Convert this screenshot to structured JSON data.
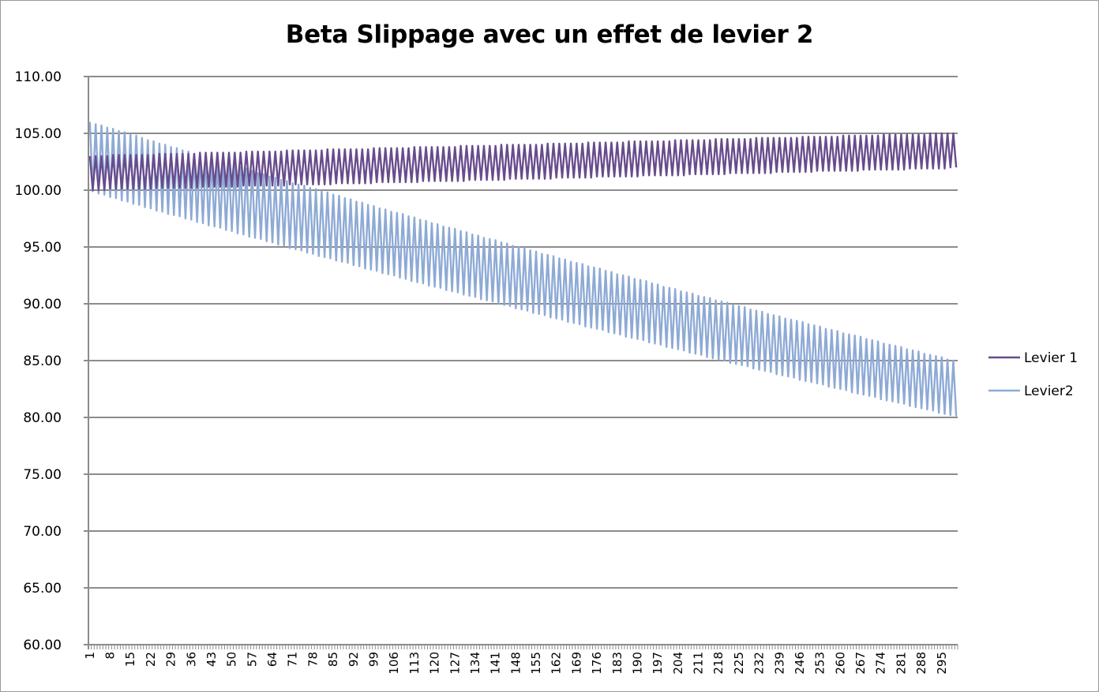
{
  "chart_data": {
    "type": "line",
    "title": "Beta Slippage avec un effet de levier 2",
    "xlabel": "",
    "ylabel": "",
    "ylim": [
      60,
      110
    ],
    "y_ticks": [
      "60.00",
      "65.00",
      "70.00",
      "75.00",
      "80.00",
      "85.00",
      "90.00",
      "95.00",
      "100.00",
      "105.00",
      "110.00"
    ],
    "x_tick_labels": [
      "1",
      "8",
      "15",
      "22",
      "29",
      "36",
      "43",
      "50",
      "57",
      "64",
      "71",
      "78",
      "85",
      "92",
      "99",
      "106",
      "113",
      "120",
      "127",
      "134",
      "141",
      "148",
      "155",
      "162",
      "169",
      "176",
      "183",
      "190",
      "197",
      "204",
      "211",
      "218",
      "225",
      "232",
      "239",
      "246",
      "253",
      "260",
      "267",
      "274",
      "281",
      "288",
      "295"
    ],
    "grid": true,
    "legend_position": "right",
    "series": [
      {
        "name": "Levier 1",
        "color": "#684c8c",
        "values": [
          103,
          100,
          103,
          100,
          103,
          100,
          103,
          100.1,
          103.1,
          100.1,
          103.1,
          100.1,
          103.1,
          100.1,
          103.1,
          100.1,
          103.1,
          100.1,
          103.1,
          100.1,
          103.1,
          100.1,
          103.1,
          100.2,
          103.2,
          100.2,
          103.2,
          100.2,
          103.2,
          100.2,
          103.2,
          100.2,
          103.2,
          100.2,
          103.2,
          100.2,
          103.2,
          100.2,
          103.3,
          100.3,
          103.3,
          100.3,
          103.3,
          100.3,
          103.3,
          100.3,
          103.3,
          100.3,
          103.3,
          100.3,
          103.3,
          100.3,
          103.3,
          100.4,
          103.4,
          100.4,
          103.4,
          100.4,
          103.4,
          100.4,
          103.4,
          100.4,
          103.4,
          100.4,
          103.4,
          100.4,
          103.4,
          100.4,
          103.5,
          100.5,
          103.5,
          100.5,
          103.5,
          100.5,
          103.5,
          100.5,
          103.5,
          100.5,
          103.5,
          100.5,
          103.5,
          100.5,
          103.6,
          100.5,
          103.6,
          100.6,
          103.6,
          100.6,
          103.6,
          100.6,
          103.6,
          100.6,
          103.6,
          100.6,
          103.6,
          100.6,
          103.6,
          100.6,
          103.7,
          100.7,
          103.7,
          100.7,
          103.7,
          100.7,
          103.7,
          100.7,
          103.7,
          100.7,
          103.7,
          100.7,
          103.7,
          100.7,
          103.8,
          100.7,
          103.8,
          100.8,
          103.8,
          100.8,
          103.8,
          100.8,
          103.8,
          100.8,
          103.8,
          100.8,
          103.8,
          100.8,
          103.8,
          100.8,
          103.9,
          100.8,
          103.9,
          100.9,
          103.9,
          100.9,
          103.9,
          100.9,
          103.9,
          100.9,
          103.9,
          100.9,
          103.9,
          100.9,
          104,
          100.9,
          104,
          101,
          104,
          101,
          104,
          101,
          104,
          101,
          104,
          101,
          104,
          101,
          104,
          101,
          104.1,
          101,
          104.1,
          101.1,
          104.1,
          101.1,
          104.1,
          101.1,
          104.1,
          101.1,
          104.1,
          101.1,
          104.1,
          101.1,
          104.2,
          101.1,
          104.2,
          101.2,
          104.2,
          101.2,
          104.2,
          101.2,
          104.2,
          101.2,
          104.2,
          101.2,
          104.2,
          101.2,
          104.3,
          101.2,
          104.3,
          101.2,
          104.3,
          101.3,
          104.3,
          101.3,
          104.3,
          101.3,
          104.3,
          101.3,
          104.3,
          101.3,
          104.3,
          101.3,
          104.4,
          101.3,
          104.4,
          101.3,
          104.4,
          101.4,
          104.4,
          101.4,
          104.4,
          101.4,
          104.4,
          101.4,
          104.4,
          101.4,
          104.5,
          101.4,
          104.5,
          101.4,
          104.5,
          101.5,
          104.5,
          101.5,
          104.5,
          101.5,
          104.5,
          101.5,
          104.5,
          101.5,
          104.6,
          101.5,
          104.6,
          101.5,
          104.6,
          101.5,
          104.6,
          101.6,
          104.6,
          101.6,
          104.6,
          101.6,
          104.6,
          101.6,
          104.6,
          101.6,
          104.7,
          101.6,
          104.7,
          101.6,
          104.7,
          101.7,
          104.7,
          101.7,
          104.7,
          101.7,
          104.7,
          101.7,
          104.7,
          101.7,
          104.8,
          101.7,
          104.8,
          101.7,
          104.8,
          101.7,
          104.8,
          101.8,
          104.8,
          101.8,
          104.8,
          101.8,
          104.8,
          101.8,
          104.9,
          101.8,
          104.9,
          101.8,
          104.9,
          101.8,
          104.9,
          101.8,
          104.9,
          101.9,
          104.9,
          101.9,
          104.9,
          101.9,
          104.9,
          101.9,
          105,
          101.9,
          105,
          101.9,
          105,
          101.9,
          105,
          102,
          105,
          102
        ]
      },
      {
        "name": "Levier2",
        "color": "#8eaad5",
        "values": [
          106,
          99.9,
          105.8,
          99.7,
          105.7,
          99.6,
          105.5,
          99.4,
          105.4,
          99.3,
          105.2,
          99.1,
          105.1,
          99,
          104.9,
          98.8,
          104.8,
          98.7,
          104.6,
          98.5,
          104.4,
          98.4,
          104.3,
          98.2,
          104.1,
          98.1,
          104,
          97.9,
          103.8,
          97.8,
          103.7,
          97.7,
          103.5,
          97.5,
          103.4,
          97.4,
          103.2,
          97.2,
          103.1,
          97.1,
          102.9,
          96.9,
          102.8,
          96.8,
          102.6,
          96.7,
          102.5,
          96.5,
          102.3,
          96.4,
          102.2,
          96.2,
          102,
          96.1,
          101.9,
          95.9,
          101.7,
          95.8,
          101.5,
          95.7,
          101.4,
          95.5,
          101.2,
          95.4,
          101.1,
          95.2,
          100.9,
          95.1,
          100.8,
          94.9,
          100.6,
          94.8,
          100.5,
          94.7,
          100.4,
          94.5,
          100.2,
          94.4,
          100.1,
          94.2,
          99.9,
          94.1,
          99.8,
          94,
          99.6,
          93.8,
          99.5,
          93.7,
          99.3,
          93.6,
          99.2,
          93.4,
          99,
          93.3,
          98.9,
          93.1,
          98.7,
          93,
          98.6,
          92.9,
          98.4,
          92.7,
          98.3,
          92.6,
          98.1,
          92.5,
          98,
          92.3,
          97.9,
          92.2,
          97.7,
          92,
          97.6,
          91.9,
          97.4,
          91.8,
          97.3,
          91.6,
          97.1,
          91.5,
          97,
          91.4,
          96.8,
          91.2,
          96.7,
          91.1,
          96.6,
          91,
          96.4,
          90.8,
          96.3,
          90.7,
          96.1,
          90.6,
          96,
          90.4,
          95.8,
          90.3,
          95.7,
          90.2,
          95.6,
          90,
          95.4,
          89.9,
          95.3,
          89.8,
          95.1,
          89.6,
          95,
          89.5,
          94.9,
          89.4,
          94.7,
          89.2,
          94.6,
          89.1,
          94.4,
          89,
          94.3,
          88.8,
          94.2,
          88.7,
          94,
          88.6,
          93.9,
          88.4,
          93.7,
          88.3,
          93.6,
          88.2,
          93.5,
          88,
          93.3,
          87.9,
          93.2,
          87.8,
          93.1,
          87.7,
          92.9,
          87.5,
          92.8,
          87.4,
          92.6,
          87.3,
          92.5,
          87.1,
          92.4,
          87,
          92.2,
          86.9,
          92.1,
          86.8,
          92,
          86.6,
          91.8,
          86.5,
          91.7,
          86.4,
          91.5,
          86.2,
          91.4,
          86.1,
          91.3,
          86,
          91.1,
          85.9,
          91,
          85.7,
          90.9,
          85.6,
          90.7,
          85.5,
          90.6,
          85.3,
          90.5,
          85.2,
          90.3,
          85.1,
          90.2,
          85,
          90.1,
          84.8,
          89.9,
          84.7,
          89.8,
          84.6,
          89.7,
          84.5,
          89.5,
          84.3,
          89.4,
          84.2,
          89.3,
          84.1,
          89.1,
          84,
          89,
          83.8,
          88.9,
          83.7,
          88.7,
          83.6,
          88.6,
          83.5,
          88.5,
          83.3,
          88.4,
          83.2,
          88.2,
          83.1,
          88.1,
          83,
          88,
          82.9,
          87.8,
          82.7,
          87.7,
          82.6,
          87.6,
          82.5,
          87.4,
          82.4,
          87.3,
          82.2,
          87.2,
          82.1,
          87.1,
          82,
          86.9,
          81.9,
          86.8,
          81.8,
          86.7,
          81.6,
          86.5,
          81.5,
          86.4,
          81.4,
          86.3,
          81.3,
          86.2,
          81.2,
          86,
          81,
          85.9,
          80.9,
          85.8,
          80.8,
          85.6,
          80.7,
          85.5,
          80.6,
          85.4,
          80.4,
          85.3,
          80.3,
          85.1,
          80.2,
          85,
          80.1
        ]
      }
    ]
  }
}
